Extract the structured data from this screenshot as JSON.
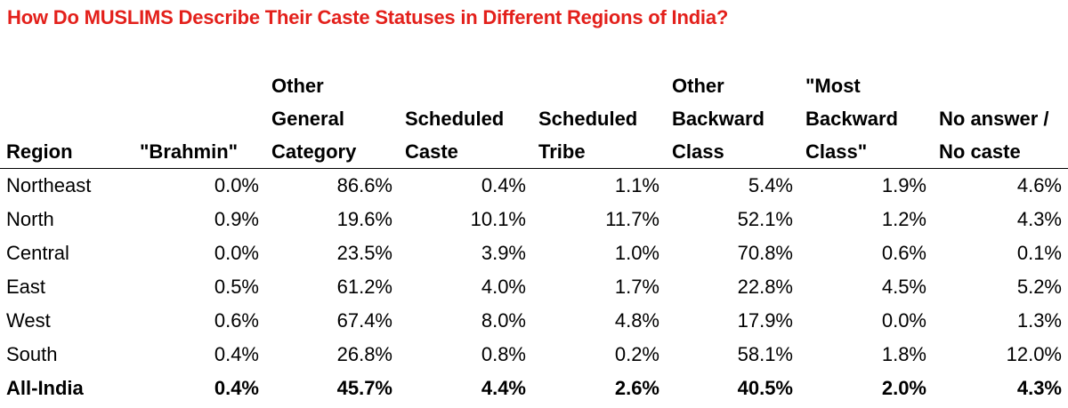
{
  "title": "How Do MUSLIMS Describe Their Caste Statuses in Different Regions of India?",
  "colors": {
    "title": "#e3201b",
    "text": "#000000",
    "rule": "#000000",
    "background": "#ffffff"
  },
  "chart_data": {
    "type": "table",
    "title": "How Do MUSLIMS Describe Their Caste Statuses in Different Regions of India?",
    "columns": [
      {
        "key": "region",
        "lines": [
          "Region"
        ]
      },
      {
        "key": "brahmin",
        "lines": [
          "\"Brahmin\""
        ]
      },
      {
        "key": "other_general_category",
        "lines": [
          "Other",
          "General",
          "Category"
        ]
      },
      {
        "key": "scheduled_caste",
        "lines": [
          "Scheduled",
          "Caste"
        ]
      },
      {
        "key": "scheduled_tribe",
        "lines": [
          "Scheduled",
          "Tribe"
        ]
      },
      {
        "key": "other_backward_class",
        "lines": [
          "Other",
          "Backward",
          "Class"
        ]
      },
      {
        "key": "most_backward_class",
        "lines": [
          "\"Most",
          "Backward",
          "Class\""
        ]
      },
      {
        "key": "no_answer_no_caste",
        "lines": [
          "No answer /",
          "No caste"
        ]
      }
    ],
    "rows": [
      {
        "region": "Northeast",
        "values": [
          "0.0%",
          "86.6%",
          "0.4%",
          "1.1%",
          "5.4%",
          "1.9%",
          "4.6%"
        ],
        "bold": false
      },
      {
        "region": "North",
        "values": [
          "0.9%",
          "19.6%",
          "10.1%",
          "11.7%",
          "52.1%",
          "1.2%",
          "4.3%"
        ],
        "bold": false
      },
      {
        "region": "Central",
        "values": [
          "0.0%",
          "23.5%",
          "3.9%",
          "1.0%",
          "70.8%",
          "0.6%",
          "0.1%"
        ],
        "bold": false
      },
      {
        "region": "East",
        "values": [
          "0.5%",
          "61.2%",
          "4.0%",
          "1.7%",
          "22.8%",
          "4.5%",
          "5.2%"
        ],
        "bold": false
      },
      {
        "region": "West",
        "values": [
          "0.6%",
          "67.4%",
          "8.0%",
          "4.8%",
          "17.9%",
          "0.0%",
          "1.3%"
        ],
        "bold": false
      },
      {
        "region": "South",
        "values": [
          "0.4%",
          "26.8%",
          "0.8%",
          "0.2%",
          "58.1%",
          "1.8%",
          "12.0%"
        ],
        "bold": false
      },
      {
        "region": "All-India",
        "values": [
          "0.4%",
          "45.7%",
          "4.4%",
          "2.6%",
          "40.5%",
          "2.0%",
          "4.3%"
        ],
        "bold": true
      }
    ]
  }
}
